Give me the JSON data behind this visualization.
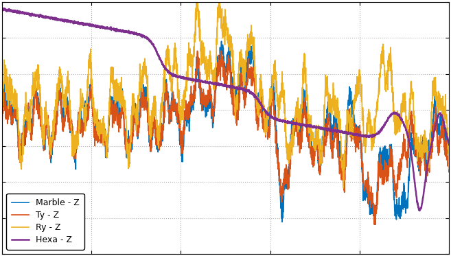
{
  "title": "",
  "xlabel": "",
  "ylabel": "",
  "background_color": "#ffffff",
  "axes_background": "#ffffff",
  "grid_color": "#b0b0b0",
  "line_colors": {
    "marble": "#0072BD",
    "ty": "#D95319",
    "ry": "#EDB120",
    "hexa": "#7E2F8E"
  },
  "legend_labels": [
    "Marble - Z",
    "Ty - Z",
    "Ry - Z",
    "Hexa - Z"
  ],
  "legend_facecolor": "#ffffff",
  "legend_edgecolor": "#000000",
  "legend_textcolor": "#000000",
  "tick_color": "#000000",
  "spine_color": "#000000",
  "ylim": [
    -90,
    -20
  ],
  "xlim": [
    0,
    500
  ],
  "figsize": [
    6.57,
    3.73
  ],
  "dpi": 100
}
